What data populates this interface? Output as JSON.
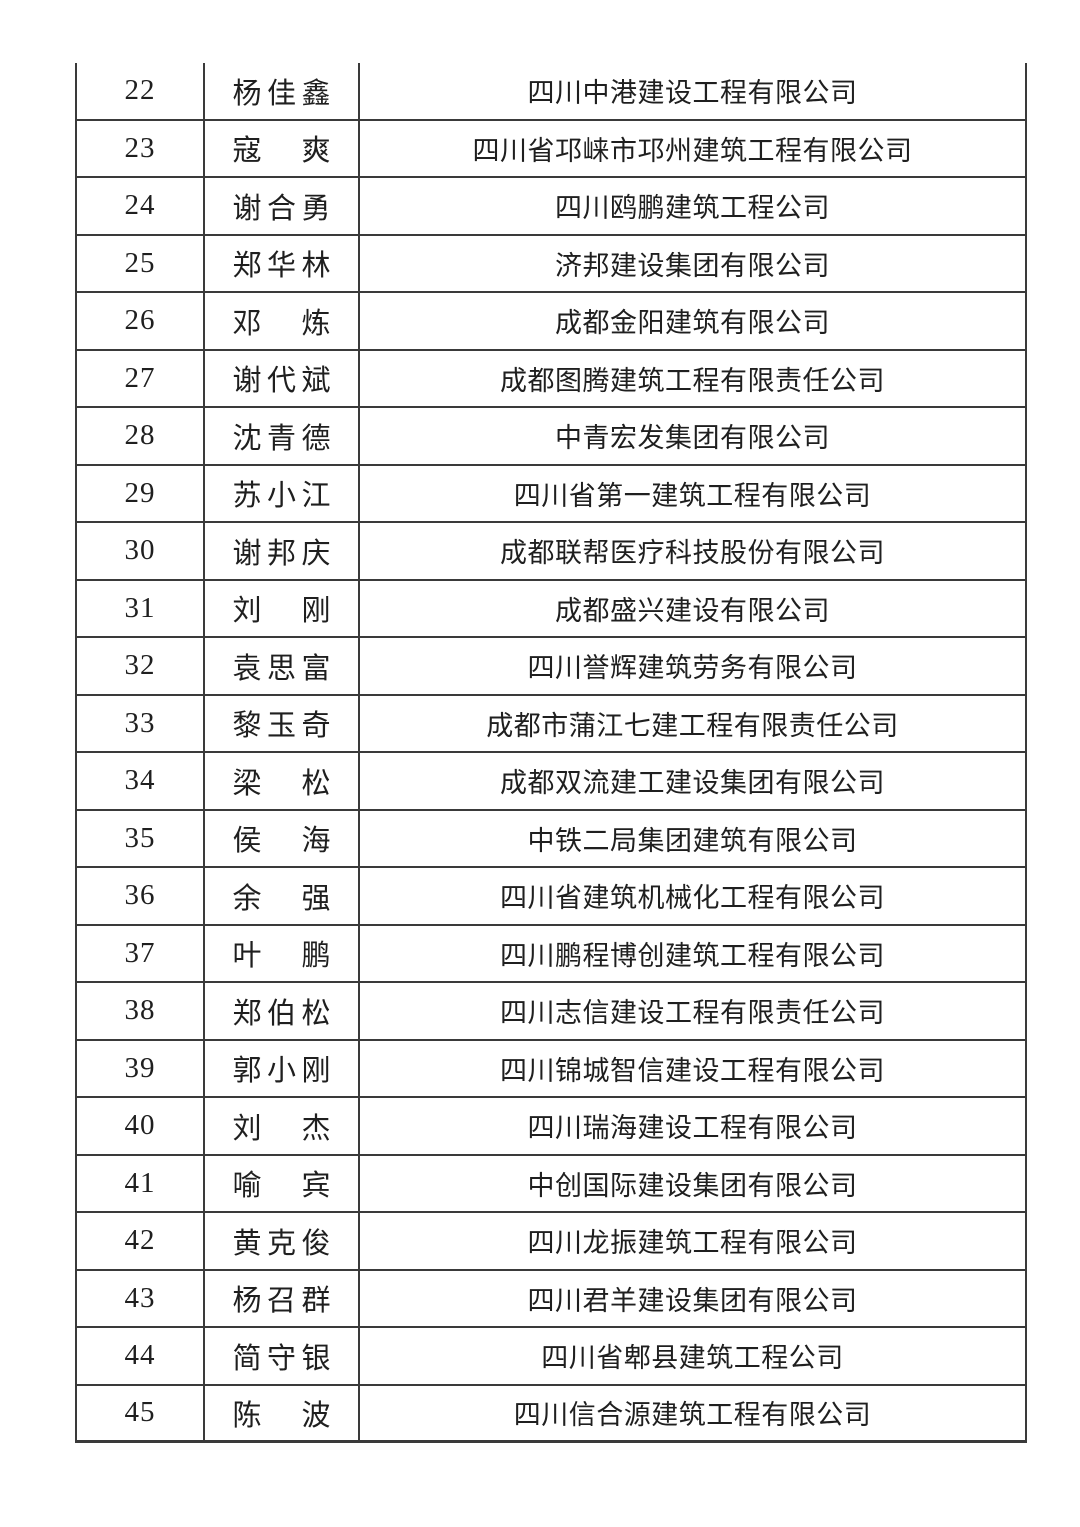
{
  "colors": {
    "background": "#ffffff",
    "text": "#1f1f1f",
    "border": "#3a3a3a"
  },
  "table": {
    "rows": [
      {
        "no": "22",
        "name": "杨佳鑫",
        "company": "四川中港建设工程有限公司"
      },
      {
        "no": "23",
        "name": "寇　爽",
        "company": "四川省邛崃市邛州建筑工程有限公司"
      },
      {
        "no": "24",
        "name": "谢合勇",
        "company": "四川鸥鹏建筑工程公司"
      },
      {
        "no": "25",
        "name": "郑华林",
        "company": "济邦建设集团有限公司"
      },
      {
        "no": "26",
        "name": "邓　炼",
        "company": "成都金阳建筑有限公司"
      },
      {
        "no": "27",
        "name": "谢代斌",
        "company": "成都图腾建筑工程有限责任公司"
      },
      {
        "no": "28",
        "name": "沈青德",
        "company": "中青宏发集团有限公司"
      },
      {
        "no": "29",
        "name": "苏小江",
        "company": "四川省第一建筑工程有限公司"
      },
      {
        "no": "30",
        "name": "谢邦庆",
        "company": "成都联帮医疗科技股份有限公司"
      },
      {
        "no": "31",
        "name": "刘　刚",
        "company": "成都盛兴建设有限公司"
      },
      {
        "no": "32",
        "name": "袁思富",
        "company": "四川誉辉建筑劳务有限公司"
      },
      {
        "no": "33",
        "name": "黎玉奇",
        "company": "成都市蒲江七建工程有限责任公司"
      },
      {
        "no": "34",
        "name": "梁　松",
        "company": "成都双流建工建设集团有限公司"
      },
      {
        "no": "35",
        "name": "侯　海",
        "company": "中铁二局集团建筑有限公司"
      },
      {
        "no": "36",
        "name": "余　强",
        "company": "四川省建筑机械化工程有限公司"
      },
      {
        "no": "37",
        "name": "叶　鹏",
        "company": "四川鹏程博创建筑工程有限公司"
      },
      {
        "no": "38",
        "name": "郑伯松",
        "company": "四川志信建设工程有限责任公司"
      },
      {
        "no": "39",
        "name": "郭小刚",
        "company": "四川锦城智信建设工程有限公司"
      },
      {
        "no": "40",
        "name": "刘　杰",
        "company": "四川瑞海建设工程有限公司"
      },
      {
        "no": "41",
        "name": "喻　宾",
        "company": "中创国际建设集团有限公司"
      },
      {
        "no": "42",
        "name": "黄克俊",
        "company": "四川龙振建筑工程有限公司"
      },
      {
        "no": "43",
        "name": "杨召群",
        "company": "四川君羊建设集团有限公司"
      },
      {
        "no": "44",
        "name": "简守银",
        "company": "四川省郫县建筑工程公司"
      },
      {
        "no": "45",
        "name": "陈　波",
        "company": "四川信合源建筑工程有限公司"
      }
    ]
  }
}
